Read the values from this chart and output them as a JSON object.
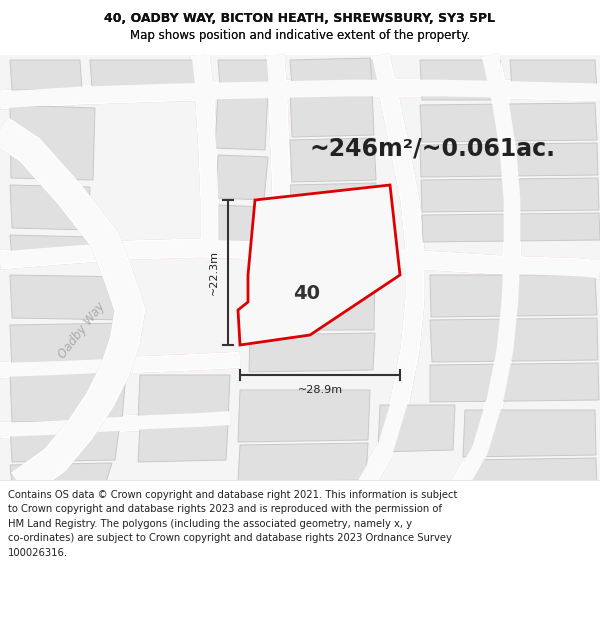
{
  "title_line1": "40, OADBY WAY, BICTON HEATH, SHREWSBURY, SY3 5PL",
  "title_line2": "Map shows position and indicative extent of the property.",
  "area_text": "~246m²/~0.061ac.",
  "number_label": "40",
  "dim_vertical": "~22.3m",
  "dim_horizontal": "~28.9m",
  "road_label": "Oadby Way",
  "footer_text": "Contains OS data © Crown copyright and database right 2021. This information is subject to Crown copyright and database rights 2023 and is reproduced with the permission of HM Land Registry. The polygons (including the associated geometry, namely x, y co-ordinates) are subject to Crown copyright and database rights 2023 Ordnance Survey 100026316.",
  "bg_color": "#ffffff",
  "map_bg": "#f2f2f2",
  "block_fill": "#e0e0e0",
  "block_edge": "#c8c8c8",
  "road_line_color": "#f0b0b0",
  "road_outline_color": "#e8a0a0",
  "highlight_fill": "#f8f8f8",
  "highlight_stroke": "#dd0000",
  "title_fontsize": 9.0,
  "area_fontsize": 17,
  "label_fontsize": 14,
  "footer_fontsize": 7.2,
  "road_label_color": "#aaaaaa",
  "dim_line_color": "#333333"
}
